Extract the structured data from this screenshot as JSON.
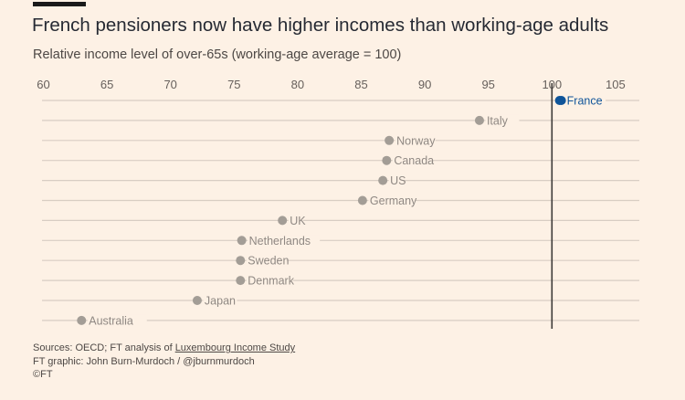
{
  "header": {
    "title": "French pensioners now have higher incomes than working-age adults",
    "subtitle": "Relative income level of over-65s (working-age average = 100)"
  },
  "chart_data": {
    "type": "scatter",
    "title": "French pensioners now have higher incomes than working-age adults",
    "subtitle": "Relative income level of over-65s (working-age average = 100)",
    "xlim": [
      60,
      108
    ],
    "xticks": [
      60,
      65,
      70,
      75,
      80,
      85,
      90,
      95,
      100,
      105
    ],
    "reference_line": 100,
    "grid": true,
    "highlight_color": "#0f5499",
    "muted_color": "#a39d96",
    "points": [
      {
        "label": "France",
        "value": 100.6,
        "highlight": true
      },
      {
        "label": "Italy",
        "value": 94.3
      },
      {
        "label": "Norway",
        "value": 87.2
      },
      {
        "label": "Canada",
        "value": 87.0
      },
      {
        "label": "US",
        "value": 86.7
      },
      {
        "label": "Germany",
        "value": 85.1
      },
      {
        "label": "UK",
        "value": 78.8
      },
      {
        "label": "Netherlands",
        "value": 75.6
      },
      {
        "label": "Sweden",
        "value": 75.5
      },
      {
        "label": "Denmark",
        "value": 75.5
      },
      {
        "label": "Japan",
        "value": 72.1
      },
      {
        "label": "Australia",
        "value": 63.0
      }
    ]
  },
  "footer": {
    "sources_prefix": "Sources: OECD; FT analysis of ",
    "sources_link": "Luxembourg Income Study",
    "credit": "FT graphic: John Burn-Murdoch / @jburnmurdoch",
    "copyright": "©FT"
  }
}
